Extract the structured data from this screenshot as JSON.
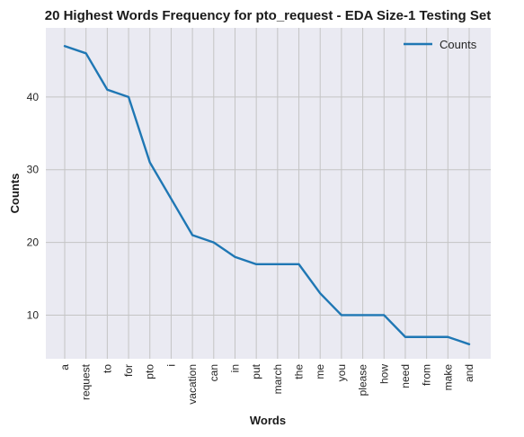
{
  "chart_data": {
    "type": "line",
    "title": "20 Highest Words Frequency for pto_request - EDA Size-1 Testing Set",
    "xlabel": "Words",
    "ylabel": "Counts",
    "categories": [
      "a",
      "request",
      "to",
      "for",
      "pto",
      "i",
      "vacation",
      "can",
      "in",
      "put",
      "march",
      "the",
      "me",
      "you",
      "please",
      "how",
      "need",
      "from",
      "make",
      "and"
    ],
    "series": [
      {
        "name": "Counts",
        "color": "#1f77b4",
        "values": [
          47,
          46,
          41,
          40,
          31,
          26,
          21,
          20,
          18,
          17,
          17,
          17,
          13,
          10,
          10,
          10,
          7,
          7,
          7,
          6
        ]
      }
    ],
    "ylim": [
      4,
      49.5
    ],
    "yticks": [
      10,
      20,
      30,
      40
    ],
    "grid": true,
    "legend_position": "top-right",
    "background_color": "#eaeaf2",
    "grid_color": "#c4c4c4"
  }
}
